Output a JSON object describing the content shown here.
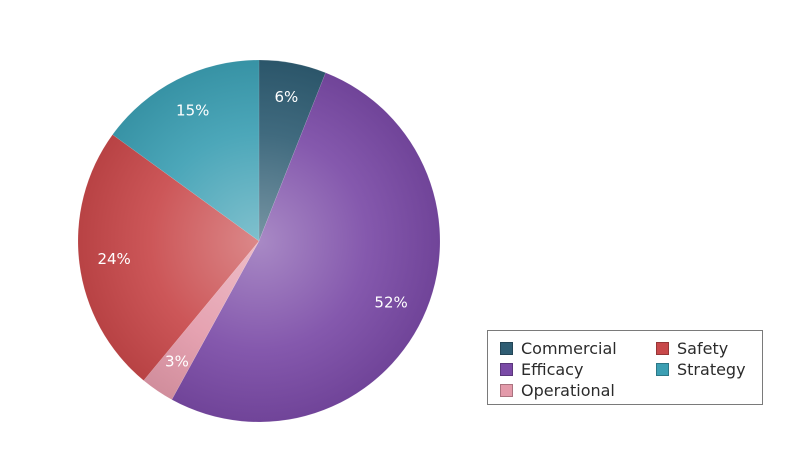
{
  "chart_data": {
    "type": "pie",
    "title": "",
    "slices": [
      {
        "label": "Commercial",
        "value": 6,
        "display": "6%",
        "color": "#2f5d73"
      },
      {
        "label": "Efficacy",
        "value": 52,
        "display": "52%",
        "color": "#7a4aa6"
      },
      {
        "label": "Operational",
        "value": 3,
        "display": "3%",
        "color": "#e39aaa"
      },
      {
        "label": "Safety",
        "value": 24,
        "display": "24%",
        "color": "#c8484a"
      },
      {
        "label": "Strategy",
        "value": 15,
        "display": "15%",
        "color": "#3c9fb3"
      }
    ],
    "legend": {
      "placement": "bottom-right",
      "items": [
        {
          "label": "Commercial",
          "color": "#2f5d73"
        },
        {
          "label": "Safety",
          "color": "#c8484a"
        },
        {
          "label": "Efficacy",
          "color": "#7a4aa6"
        },
        {
          "label": "Strategy",
          "color": "#3c9fb3"
        },
        {
          "label": "Operational",
          "color": "#e39aaa"
        }
      ]
    }
  }
}
